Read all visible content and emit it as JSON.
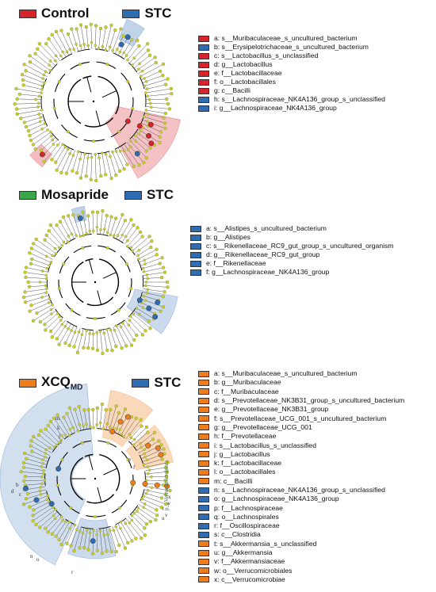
{
  "colors": {
    "control": "#d7232a",
    "stc": "#2f6db3",
    "mosapride": "#3aa64a",
    "xcq": "#f07d1c",
    "node": "#c8cf24",
    "edge": "#000000"
  },
  "panels": [
    {
      "groups": [
        {
          "label": "Control",
          "color": "#d7232a"
        },
        {
          "label": "STC",
          "color": "#2f6db3"
        }
      ],
      "items": [
        {
          "text": "a: s__Muribaculaceae_s_uncultured_bacterium",
          "color": "#d7232a"
        },
        {
          "text": "b: s__Erysipelotrichaceae_s_uncultured_bacterium",
          "color": "#2f6db3"
        },
        {
          "text": "c: s__Lactobacillus_s_unclassified",
          "color": "#d7232a"
        },
        {
          "text": "d: g__Lactobacillus",
          "color": "#d7232a"
        },
        {
          "text": "e: f__Lactobacillaceae",
          "color": "#d7232a"
        },
        {
          "text": "f: o__Lactobacillales",
          "color": "#d7232a"
        },
        {
          "text": "g: c__Bacilli",
          "color": "#d7232a"
        },
        {
          "text": "h: s__Lachnospiraceae_NK4A136_group_s_unclassified",
          "color": "#2f6db3"
        },
        {
          "text": "i: g__Lachnospiraceae_NK4A136_group",
          "color": "#2f6db3"
        }
      ]
    },
    {
      "groups": [
        {
          "label": "Mosapride",
          "color": "#3aa64a"
        },
        {
          "label": "STC",
          "color": "#2f6db3"
        }
      ],
      "items": [
        {
          "text": "a: s__Alistipes_s_uncultured_bacterium",
          "color": "#2f6db3"
        },
        {
          "text": "b: g__Alistipes",
          "color": "#2f6db3"
        },
        {
          "text": "c: s__Rikenellaceae_RC9_gut_group_s_uncultured_organism",
          "color": "#2f6db3"
        },
        {
          "text": "d: g__Rikenellaceae_RC9_gut_group",
          "color": "#2f6db3"
        },
        {
          "text": "e: f__Rikenellaceae",
          "color": "#2f6db3"
        },
        {
          "text": "f: g__Lachnospiraceae_NK4A136_group",
          "color": "#2f6db3"
        }
      ]
    },
    {
      "groups": [
        {
          "label": "XCQ",
          "sub": "MD",
          "color": "#f07d1c"
        },
        {
          "label": "STC",
          "color": "#2f6db3"
        }
      ],
      "items": [
        {
          "text": "a: s__Muribaculaceae_s_uncultured_bacterium",
          "color": "#f07d1c"
        },
        {
          "text": "b: g__Muribaculaceae",
          "color": "#f07d1c"
        },
        {
          "text": "c: f__Muribaculaceae",
          "color": "#f07d1c"
        },
        {
          "text": "d: s__Prevotellaceae_NK3B31_group_s_uncultured_bacterium",
          "color": "#f07d1c"
        },
        {
          "text": "e: g__Prevotellaceae_NK3B31_group",
          "color": "#f07d1c"
        },
        {
          "text": "f: s__Prevotellaceae_UCG_001_s_uncultured_bacterium",
          "color": "#f07d1c"
        },
        {
          "text": "g: g__Prevotellaceae_UCG_001",
          "color": "#f07d1c"
        },
        {
          "text": "h: f__Prevotellaceae",
          "color": "#f07d1c"
        },
        {
          "text": "i: s__Lactobacillus_s_unclassified",
          "color": "#f07d1c"
        },
        {
          "text": "j: g__Lactobacillus",
          "color": "#f07d1c"
        },
        {
          "text": "k: f__Lactobacillaceae",
          "color": "#f07d1c"
        },
        {
          "text": "l: o__Lactobacillales",
          "color": "#f07d1c"
        },
        {
          "text": "m: c__Bacilli",
          "color": "#f07d1c"
        },
        {
          "text": "n: s__Lachnospiraceae_NK4A136_group_s_unclassified",
          "color": "#2f6db3"
        },
        {
          "text": "o: g__Lachnospiraceae_NK4A136_group",
          "color": "#2f6db3"
        },
        {
          "text": "p: f__Lachnospiraceae",
          "color": "#2f6db3"
        },
        {
          "text": "q: o__Lachnospirales",
          "color": "#2f6db3"
        },
        {
          "text": "r: f__Oscillospiraceae",
          "color": "#2f6db3"
        },
        {
          "text": "s: c__Clostridia",
          "color": "#2f6db3"
        },
        {
          "text": "t: s__Akkermansia_s_unclassified",
          "color": "#f07d1c"
        },
        {
          "text": "u: g__Akkermansia",
          "color": "#f07d1c"
        },
        {
          "text": "v: f__Akkermansiaceae",
          "color": "#f07d1c"
        },
        {
          "text": "w: o__Verrucomicrobiales",
          "color": "#f07d1c"
        },
        {
          "text": "x: c__Verrucomicrobiae",
          "color": "#f07d1c"
        }
      ],
      "cladogram_labels": [
        "p__Verrucomicrobiota",
        "m",
        "k",
        "j",
        "i",
        "b",
        "d",
        "c",
        "e",
        "f",
        "t",
        "x",
        "w",
        "u",
        "v",
        "r",
        "n",
        "o"
      ]
    }
  ]
}
